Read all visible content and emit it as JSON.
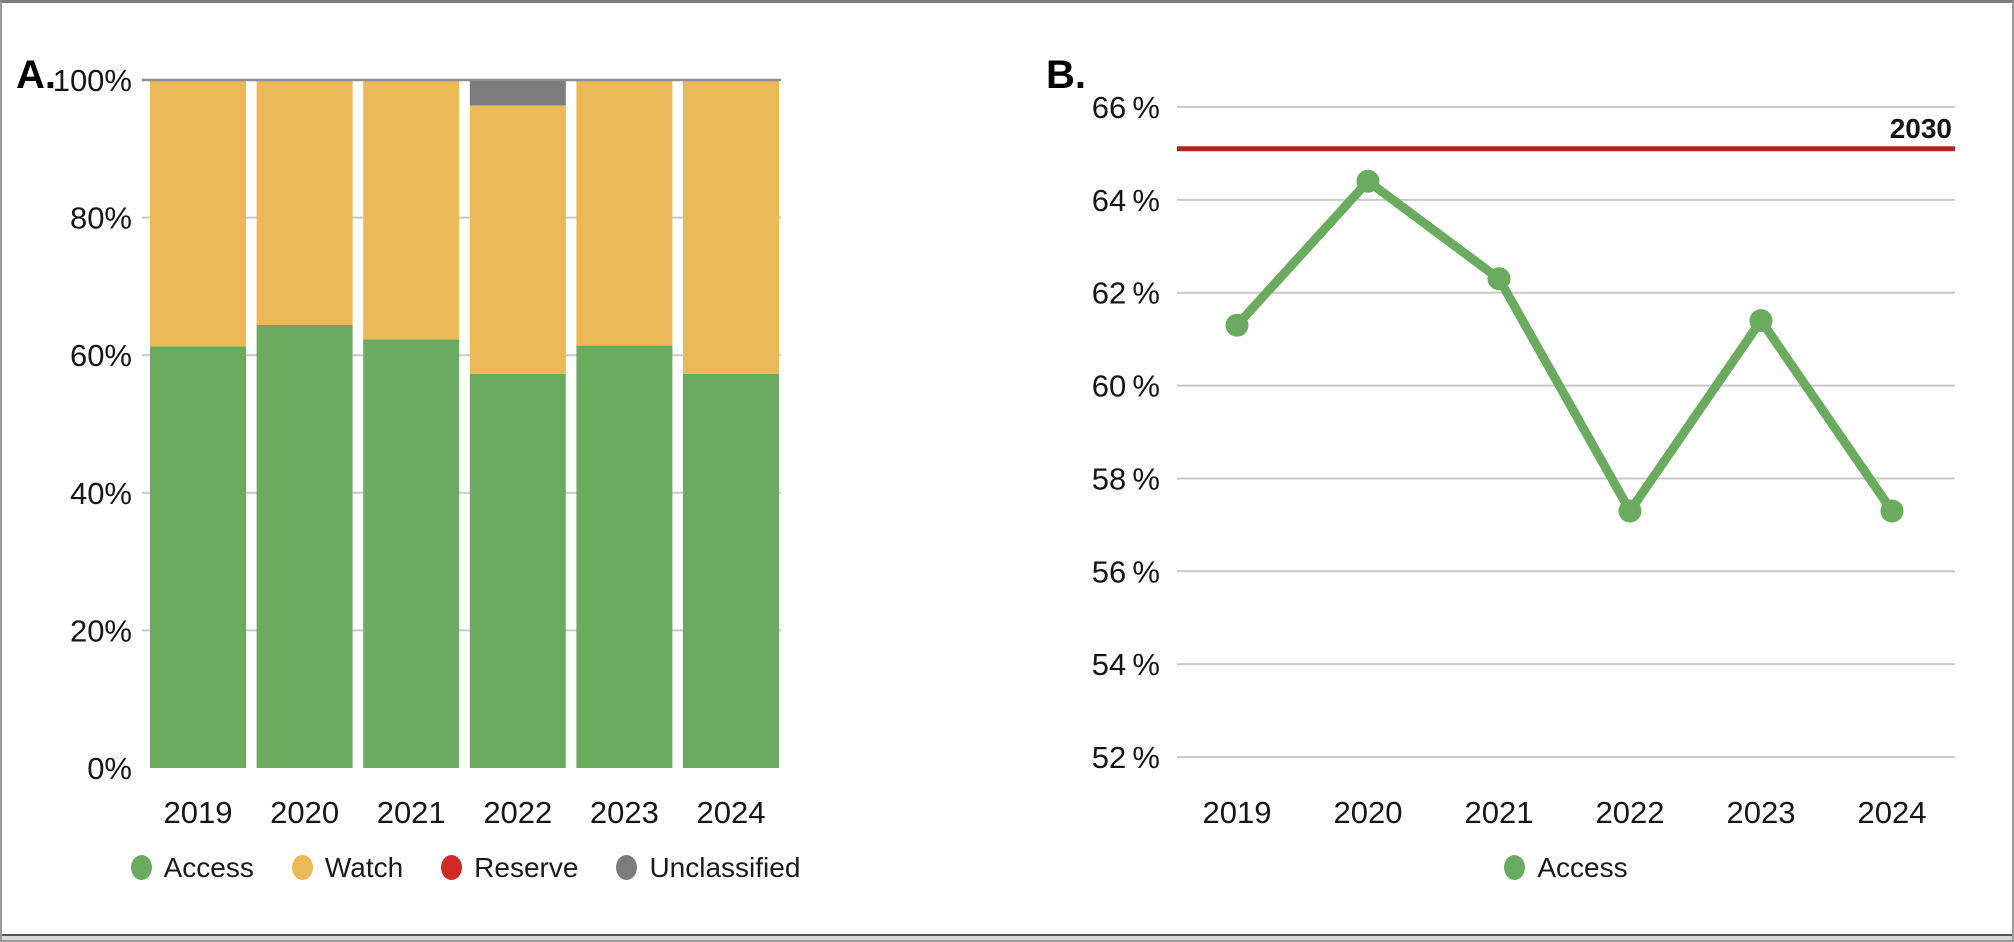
{
  "panel_a": {
    "label": "A.",
    "y_ticks": [
      "100%",
      "80%",
      "60%",
      "40%",
      "20%",
      "0%"
    ],
    "legend": [
      {
        "label": "Access",
        "color": "#6BAB5F"
      },
      {
        "label": "Watch",
        "color": "#EBB958"
      },
      {
        "label": "Reserve",
        "color": "#CE2A26"
      },
      {
        "label": "Unclassified",
        "color": "#7C7C7C"
      }
    ]
  },
  "panel_b": {
    "label": "B.",
    "y_ticks": [
      "66 %",
      "64 %",
      "62 %",
      "60 %",
      "58 %",
      "56 %",
      "54 %",
      "52 %"
    ],
    "target_label": "2030",
    "legend": [
      {
        "label": "Access",
        "color": "#6BAB5F"
      }
    ]
  },
  "colors": {
    "access": "#6BAB5F",
    "watch": "#EBB958",
    "reserve": "#CE2A26",
    "unclassified": "#7C7C7C",
    "target_line": "#A32B1E",
    "gridline": "#C9C9C9",
    "top_gridline": "#8F8F8F"
  },
  "chart_data": [
    {
      "type": "bar",
      "stacked": true,
      "panel": "A.",
      "categories": [
        "2019",
        "2020",
        "2021",
        "2022",
        "2023",
        "2024"
      ],
      "series": [
        {
          "name": "Access",
          "color": "#6BAB5F",
          "values": [
            61.3,
            64.4,
            62.3,
            57.3,
            61.4,
            57.3
          ]
        },
        {
          "name": "Watch",
          "color": "#EBB958",
          "values": [
            38.7,
            35.6,
            37.7,
            39.0,
            38.6,
            42.7
          ]
        },
        {
          "name": "Reserve",
          "color": "#CE2A26",
          "values": [
            0,
            0,
            0,
            0,
            0,
            0
          ]
        },
        {
          "name": "Unclassified",
          "color": "#7C7C7C",
          "values": [
            0,
            0,
            0,
            3.7,
            0,
            0
          ]
        }
      ],
      "ylabel": "",
      "xlabel": "",
      "ylim": [
        0,
        100
      ],
      "y_tick_step": 20,
      "grid": true,
      "legend_position": "bottom"
    },
    {
      "type": "line",
      "panel": "B.",
      "categories": [
        "2019",
        "2020",
        "2021",
        "2022",
        "2023",
        "2024"
      ],
      "series": [
        {
          "name": "Access",
          "color": "#6BAB5F",
          "values": [
            61.3,
            64.4,
            62.3,
            57.3,
            61.4,
            57.3
          ]
        }
      ],
      "target_line": {
        "value": 65.1,
        "label": "2030",
        "color": "#A32B1E"
      },
      "ylabel": "",
      "xlabel": "",
      "ylim": [
        52,
        66
      ],
      "y_tick_step": 2,
      "grid": true,
      "legend_position": "bottom"
    }
  ]
}
